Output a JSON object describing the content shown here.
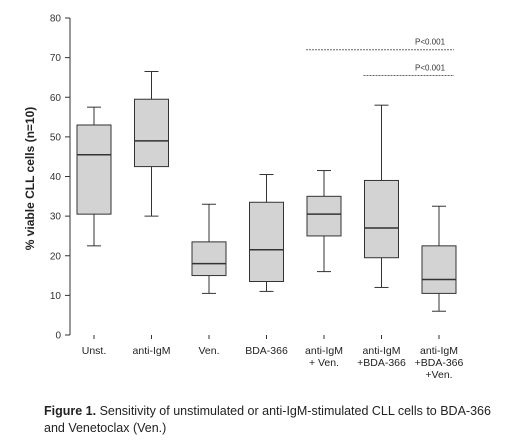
{
  "chart_data": {
    "type": "box",
    "ylabel": "% viable CLL cells (n=10)",
    "ylim": [
      0,
      80
    ],
    "yticks": [
      0,
      10,
      20,
      30,
      40,
      50,
      60,
      70,
      80
    ],
    "categories": [
      [
        "Unst."
      ],
      [
        "anti-IgM"
      ],
      [
        "Ven."
      ],
      [
        "BDA-366"
      ],
      [
        "anti-IgM",
        "+ Ven."
      ],
      [
        "anti-IgM",
        "+BDA-366"
      ],
      [
        "anti-IgM",
        "+BDA-366",
        "+Ven."
      ]
    ],
    "boxes": [
      {
        "min": 22.5,
        "q1": 30.5,
        "median": 45.5,
        "q3": 53,
        "max": 57.5
      },
      {
        "min": 30,
        "q1": 42.5,
        "median": 49,
        "q3": 59.5,
        "max": 66.5
      },
      {
        "min": 10.5,
        "q1": 15,
        "median": 18,
        "q3": 23.5,
        "max": 33
      },
      {
        "min": 11,
        "q1": 13.5,
        "median": 21.5,
        "q3": 33.5,
        "max": 40.5
      },
      {
        "min": 16,
        "q1": 25,
        "median": 30.5,
        "q3": 35,
        "max": 41.5
      },
      {
        "min": 12,
        "q1": 19.5,
        "median": 27,
        "q3": 39,
        "max": 58
      },
      {
        "min": 6,
        "q1": 10.5,
        "median": 14,
        "q3": 22.5,
        "max": 32.5
      }
    ],
    "annotations": [
      {
        "text": "P<0.001",
        "y": 72,
        "from_index": 4,
        "to_index": 6
      },
      {
        "text": "P<0.001",
        "y": 65.5,
        "from_index": 5,
        "to_index": 6
      }
    ],
    "box_fill": "#d3d3d3",
    "line_color": "#333333"
  },
  "caption": {
    "bold": "Figure 1.",
    "text": " Sensitivity of unstimulated or anti-IgM-stimulated CLL cells to BDA-366 and Venetoclax (Ven.)"
  }
}
